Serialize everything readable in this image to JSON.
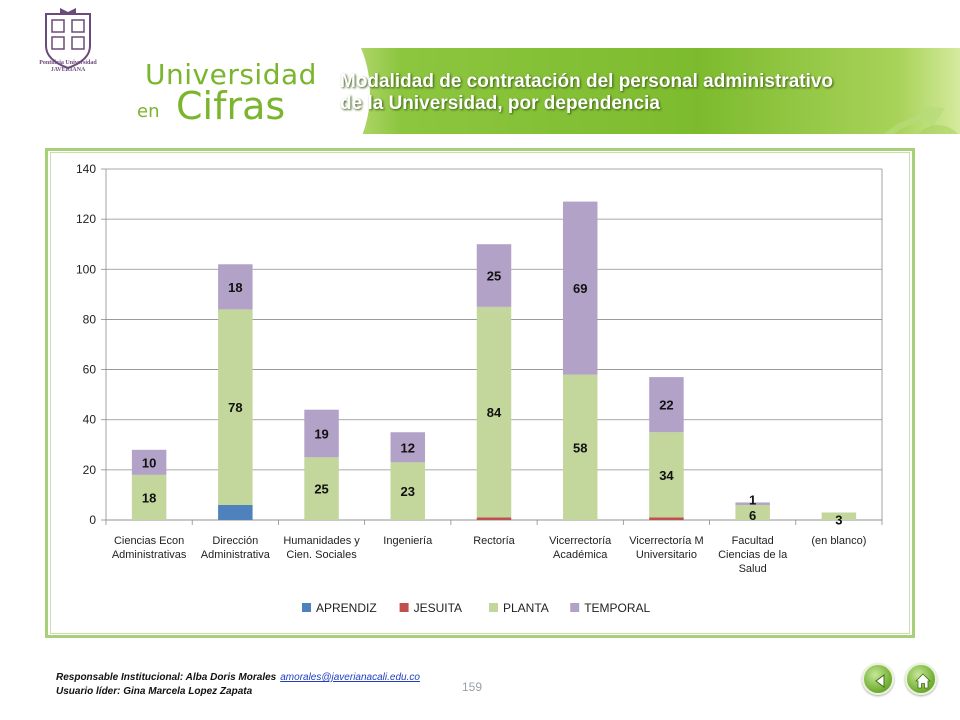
{
  "header": {
    "brand_line1": "Universidad",
    "brand_en": "en",
    "brand_cifras": "Cifras",
    "crest_label_1": "Pontificia Universidad",
    "crest_label_2": "JAVERIANA",
    "title_line1": "Modalidad de contratación del personal administrativo",
    "title_line2": "de la Universidad, por dependencia"
  },
  "chart_data": {
    "type": "bar",
    "stacked": true,
    "title": "",
    "xlabel": "",
    "ylabel": "",
    "ylim": [
      0,
      140
    ],
    "yticks": [
      "0",
      "20",
      "40",
      "60",
      "80",
      "100",
      "120",
      "140"
    ],
    "grid": true,
    "legend_position": "bottom",
    "categories": [
      [
        "Ciencias Econ",
        "Administrativas"
      ],
      [
        "Dirección",
        "Administrativa"
      ],
      [
        "Humanidades y",
        "Cien. Sociales"
      ],
      [
        "Ingeniería"
      ],
      [
        "Rectoría"
      ],
      [
        "Vicerrectoría",
        "Académica"
      ],
      [
        "Vicerrectoría M",
        "Universitario"
      ],
      [
        "Facultad",
        "Ciencias de la",
        "Salud"
      ],
      [
        "(en blanco)"
      ]
    ],
    "series": [
      {
        "name": "APRENDIZ",
        "color": "#4f81bd",
        "values": [
          0,
          6,
          0,
          0,
          0,
          0,
          0,
          0,
          0
        ]
      },
      {
        "name": "JESUITA",
        "color": "#c0504d",
        "values": [
          0,
          0,
          0,
          0,
          1,
          0,
          1,
          0,
          0
        ]
      },
      {
        "name": "PLANTA",
        "color": "#c3d69b",
        "values": [
          18,
          78,
          25,
          23,
          84,
          58,
          34,
          6,
          3
        ]
      },
      {
        "name": "TEMPORAL",
        "color": "#b3a2c7",
        "values": [
          10,
          18,
          19,
          12,
          25,
          69,
          22,
          1,
          0
        ]
      }
    ],
    "data_labels": [
      {
        "series": 2,
        "labels": [
          "18",
          "78",
          "25",
          "23",
          "84",
          "58",
          "34",
          "6",
          "3"
        ]
      },
      {
        "series": 3,
        "labels": [
          "10",
          "18",
          "19",
          "12",
          "25",
          "69",
          "22",
          "1",
          ""
        ]
      }
    ]
  },
  "footer": {
    "responsable_label": "Responsable Institucional: Alba Doris Morales",
    "email": "amorales@javerianacali.edu.co",
    "usuario": "Usuario líder: Gina Marcela Lopez Zapata",
    "page_number": "159"
  },
  "nav": {
    "back_icon": "back-arrow-icon",
    "home_icon": "home-icon"
  }
}
